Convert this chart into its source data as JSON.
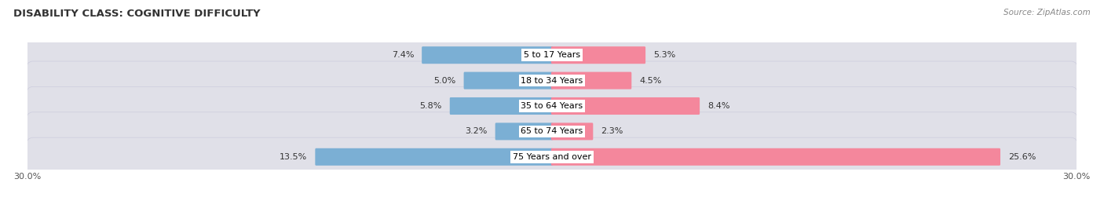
{
  "title": "DISABILITY CLASS: COGNITIVE DIFFICULTY",
  "source": "Source: ZipAtlas.com",
  "categories": [
    "5 to 17 Years",
    "18 to 34 Years",
    "35 to 64 Years",
    "65 to 74 Years",
    "75 Years and over"
  ],
  "male_values": [
    7.4,
    5.0,
    5.8,
    3.2,
    13.5
  ],
  "female_values": [
    5.3,
    4.5,
    8.4,
    2.3,
    25.6
  ],
  "male_color": "#7bafd4",
  "female_color": "#f4879c",
  "bar_bg_color": "#e0e0e8",
  "bar_bg_border": "#ccccdd",
  "axis_max": 30.0,
  "title_fontsize": 9.5,
  "value_fontsize": 8.0,
  "category_fontsize": 8.0,
  "legend_fontsize": 8.5,
  "source_fontsize": 7.5
}
